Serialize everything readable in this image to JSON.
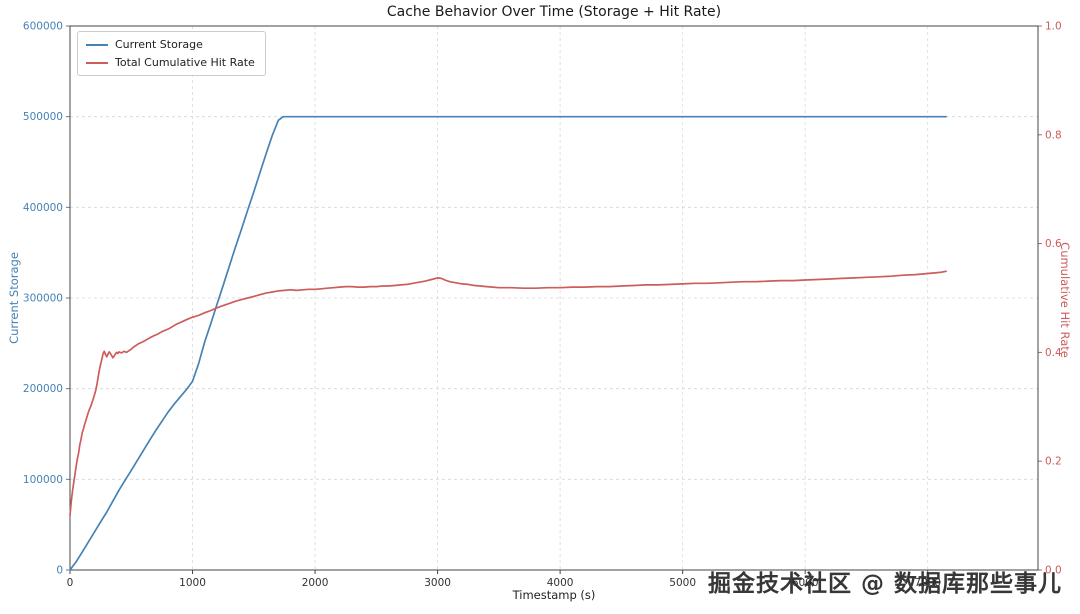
{
  "chart_data": {
    "type": "line",
    "title": "Cache Behavior Over Time (Storage + Hit Rate)",
    "xlabel": "Timestamp (s)",
    "ylabel_left": "Current Storage",
    "ylabel_right": "Cumulative Hit Rate",
    "xlim": [
      0,
      7900
    ],
    "ylim_left": [
      0,
      600000
    ],
    "ylim_right": [
      0,
      1.0
    ],
    "grid": true,
    "legend_position": "upper left",
    "x_ticks": [
      0,
      1000,
      2000,
      3000,
      4000,
      5000,
      6000,
      7000
    ],
    "x_tick_labels": [
      "0",
      "1000",
      "2000",
      "3000",
      "4000",
      "5000",
      "6000",
      "7000"
    ],
    "y_ticks_left": [
      0,
      100000,
      200000,
      300000,
      400000,
      500000,
      600000
    ],
    "y_tick_labels_left": [
      "0",
      "100000",
      "200000",
      "300000",
      "400000",
      "500000",
      "600000"
    ],
    "y_ticks_right": [
      0,
      0.2,
      0.4,
      0.6,
      0.8,
      1.0
    ],
    "y_tick_labels_right": [
      "0.0",
      "0.2",
      "0.4",
      "0.6",
      "0.8",
      "1.0"
    ],
    "series": [
      {
        "name": "Current Storage",
        "axis": "left",
        "color": "#4682b4",
        "points": [
          [
            0,
            0
          ],
          [
            50,
            9000
          ],
          [
            100,
            20000
          ],
          [
            150,
            31000
          ],
          [
            200,
            42000
          ],
          [
            250,
            53000
          ],
          [
            300,
            64000
          ],
          [
            350,
            76000
          ],
          [
            400,
            88000
          ],
          [
            450,
            99000
          ],
          [
            500,
            110000
          ],
          [
            550,
            121000
          ],
          [
            600,
            132000
          ],
          [
            650,
            143000
          ],
          [
            700,
            154000
          ],
          [
            750,
            164000
          ],
          [
            800,
            174000
          ],
          [
            850,
            183000
          ],
          [
            900,
            191000
          ],
          [
            950,
            199000
          ],
          [
            1000,
            208000
          ],
          [
            1050,
            228000
          ],
          [
            1100,
            252000
          ],
          [
            1150,
            272000
          ],
          [
            1200,
            293000
          ],
          [
            1250,
            314000
          ],
          [
            1300,
            335000
          ],
          [
            1350,
            356000
          ],
          [
            1400,
            376000
          ],
          [
            1450,
            397000
          ],
          [
            1500,
            417000
          ],
          [
            1550,
            438000
          ],
          [
            1600,
            459000
          ],
          [
            1650,
            479000
          ],
          [
            1700,
            496000
          ],
          [
            1740,
            500000
          ],
          [
            2000,
            500000
          ],
          [
            3000,
            500000
          ],
          [
            4000,
            500000
          ],
          [
            5000,
            500000
          ],
          [
            6000,
            500000
          ],
          [
            7150,
            500000
          ]
        ]
      },
      {
        "name": "Total Cumulative Hit Rate",
        "axis": "right",
        "color": "#cd5c5c",
        "points": [
          [
            0,
            0.1
          ],
          [
            10,
            0.125
          ],
          [
            20,
            0.145
          ],
          [
            30,
            0.16
          ],
          [
            40,
            0.175
          ],
          [
            50,
            0.19
          ],
          [
            60,
            0.205
          ],
          [
            70,
            0.215
          ],
          [
            80,
            0.23
          ],
          [
            90,
            0.24
          ],
          [
            100,
            0.253
          ],
          [
            110,
            0.26
          ],
          [
            120,
            0.268
          ],
          [
            130,
            0.275
          ],
          [
            140,
            0.283
          ],
          [
            150,
            0.29
          ],
          [
            160,
            0.296
          ],
          [
            170,
            0.301
          ],
          [
            180,
            0.308
          ],
          [
            190,
            0.315
          ],
          [
            200,
            0.322
          ],
          [
            210,
            0.33
          ],
          [
            220,
            0.342
          ],
          [
            230,
            0.355
          ],
          [
            240,
            0.368
          ],
          [
            250,
            0.378
          ],
          [
            260,
            0.388
          ],
          [
            270,
            0.398
          ],
          [
            280,
            0.402
          ],
          [
            290,
            0.396
          ],
          [
            300,
            0.392
          ],
          [
            310,
            0.397
          ],
          [
            320,
            0.401
          ],
          [
            330,
            0.398
          ],
          [
            340,
            0.394
          ],
          [
            350,
            0.39
          ],
          [
            360,
            0.393
          ],
          [
            370,
            0.397
          ],
          [
            380,
            0.4
          ],
          [
            390,
            0.398
          ],
          [
            400,
            0.401
          ],
          [
            420,
            0.399
          ],
          [
            440,
            0.402
          ],
          [
            460,
            0.4
          ],
          [
            480,
            0.403
          ],
          [
            500,
            0.406
          ],
          [
            520,
            0.41
          ],
          [
            540,
            0.413
          ],
          [
            560,
            0.416
          ],
          [
            580,
            0.418
          ],
          [
            600,
            0.42
          ],
          [
            630,
            0.424
          ],
          [
            660,
            0.428
          ],
          [
            690,
            0.431
          ],
          [
            720,
            0.434
          ],
          [
            750,
            0.438
          ],
          [
            780,
            0.441
          ],
          [
            810,
            0.444
          ],
          [
            840,
            0.448
          ],
          [
            870,
            0.452
          ],
          [
            900,
            0.455
          ],
          [
            930,
            0.458
          ],
          [
            960,
            0.461
          ],
          [
            990,
            0.464
          ],
          [
            1020,
            0.466
          ],
          [
            1060,
            0.469
          ],
          [
            1100,
            0.473
          ],
          [
            1150,
            0.477
          ],
          [
            1200,
            0.482
          ],
          [
            1250,
            0.486
          ],
          [
            1300,
            0.49
          ],
          [
            1350,
            0.494
          ],
          [
            1400,
            0.497
          ],
          [
            1450,
            0.5
          ],
          [
            1500,
            0.503
          ],
          [
            1550,
            0.506
          ],
          [
            1600,
            0.509
          ],
          [
            1650,
            0.511
          ],
          [
            1700,
            0.513
          ],
          [
            1750,
            0.514
          ],
          [
            1800,
            0.515
          ],
          [
            1850,
            0.514
          ],
          [
            1900,
            0.515
          ],
          [
            1950,
            0.516
          ],
          [
            2000,
            0.516
          ],
          [
            2050,
            0.517
          ],
          [
            2100,
            0.518
          ],
          [
            2150,
            0.519
          ],
          [
            2200,
            0.52
          ],
          [
            2250,
            0.521
          ],
          [
            2300,
            0.521
          ],
          [
            2350,
            0.52
          ],
          [
            2400,
            0.52
          ],
          [
            2450,
            0.521
          ],
          [
            2500,
            0.521
          ],
          [
            2550,
            0.522
          ],
          [
            2600,
            0.522
          ],
          [
            2650,
            0.523
          ],
          [
            2700,
            0.524
          ],
          [
            2750,
            0.525
          ],
          [
            2800,
            0.527
          ],
          [
            2850,
            0.529
          ],
          [
            2900,
            0.531
          ],
          [
            2950,
            0.534
          ],
          [
            3000,
            0.537
          ],
          [
            3030,
            0.536
          ],
          [
            3060,
            0.533
          ],
          [
            3100,
            0.53
          ],
          [
            3150,
            0.528
          ],
          [
            3200,
            0.526
          ],
          [
            3250,
            0.525
          ],
          [
            3300,
            0.523
          ],
          [
            3350,
            0.522
          ],
          [
            3400,
            0.521
          ],
          [
            3450,
            0.52
          ],
          [
            3500,
            0.519
          ],
          [
            3600,
            0.519
          ],
          [
            3700,
            0.518
          ],
          [
            3800,
            0.518
          ],
          [
            3900,
            0.519
          ],
          [
            4000,
            0.519
          ],
          [
            4100,
            0.52
          ],
          [
            4200,
            0.52
          ],
          [
            4300,
            0.521
          ],
          [
            4400,
            0.521
          ],
          [
            4500,
            0.522
          ],
          [
            4600,
            0.523
          ],
          [
            4700,
            0.524
          ],
          [
            4800,
            0.524
          ],
          [
            4900,
            0.525
          ],
          [
            5000,
            0.526
          ],
          [
            5100,
            0.527
          ],
          [
            5200,
            0.527
          ],
          [
            5300,
            0.528
          ],
          [
            5400,
            0.529
          ],
          [
            5500,
            0.53
          ],
          [
            5600,
            0.53
          ],
          [
            5700,
            0.531
          ],
          [
            5800,
            0.532
          ],
          [
            5900,
            0.532
          ],
          [
            6000,
            0.533
          ],
          [
            6100,
            0.534
          ],
          [
            6200,
            0.535
          ],
          [
            6300,
            0.536
          ],
          [
            6400,
            0.537
          ],
          [
            6500,
            0.538
          ],
          [
            6600,
            0.539
          ],
          [
            6700,
            0.54
          ],
          [
            6800,
            0.542
          ],
          [
            6900,
            0.543
          ],
          [
            7000,
            0.545
          ],
          [
            7050,
            0.546
          ],
          [
            7100,
            0.547
          ],
          [
            7150,
            0.549
          ]
        ]
      }
    ]
  },
  "watermark": {
    "text": "掘金技术社区 @ 数据库那些事儿"
  }
}
